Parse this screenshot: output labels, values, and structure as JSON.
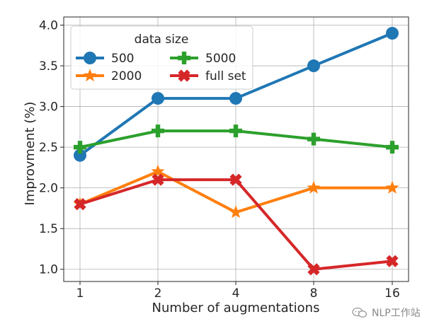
{
  "chart_data": {
    "type": "line",
    "categories": [
      "1",
      "2",
      "4",
      "8",
      "16"
    ],
    "series": [
      {
        "name": "500",
        "values": [
          2.4,
          3.1,
          3.1,
          3.5,
          3.9
        ],
        "color": "#1f77b4",
        "marker": "circle"
      },
      {
        "name": "2000",
        "values": [
          1.8,
          2.2,
          1.7,
          2.0,
          2.0
        ],
        "color": "#ff7f0e",
        "marker": "star"
      },
      {
        "name": "5000",
        "values": [
          2.5,
          2.7,
          2.7,
          2.6,
          2.5
        ],
        "color": "#2ca02c",
        "marker": "plus"
      },
      {
        "name": "full set",
        "values": [
          1.8,
          2.1,
          2.1,
          1.0,
          1.1
        ],
        "color": "#d62728",
        "marker": "x"
      }
    ],
    "xlabel": "Number of augmentations",
    "ylabel": "Improvment (%)",
    "ylim": [
      0.85,
      4.1
    ],
    "yticks": [
      "1.0",
      "1.5",
      "2.0",
      "2.5",
      "3.0",
      "3.5",
      "4.0"
    ],
    "grid": true,
    "legend": {
      "title": "data size",
      "placement": "top-left",
      "columns": 2
    }
  },
  "watermark": {
    "text": "NLP工作站",
    "icon": "chat-bubbles-icon"
  }
}
